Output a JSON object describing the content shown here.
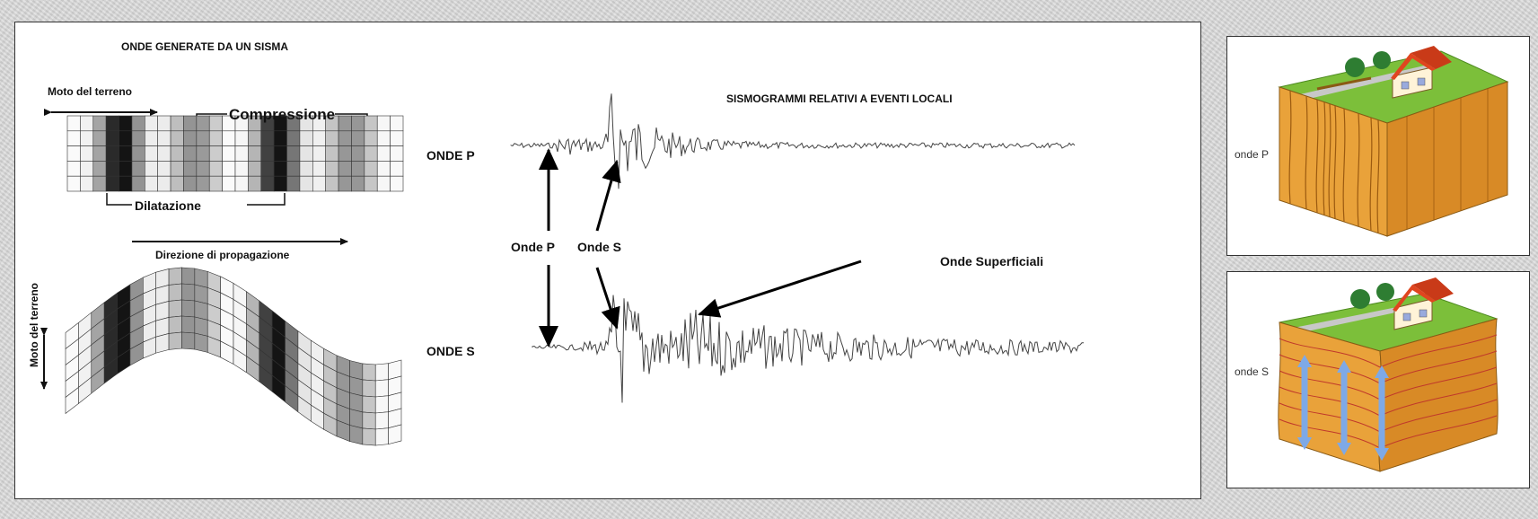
{
  "main": {
    "title": "ONDE GENERATE DA UN SISMA",
    "ground_motion_top": "Moto del terreno",
    "compression": "Compressione",
    "dilation": "Dilatazione",
    "p_waves": "ONDE P",
    "propagation": "Direzione di propagazione",
    "ground_motion_side": "Moto del terreno",
    "s_waves": "ONDE S",
    "seismograms_title": "SISMOGRAMMI RELATIVI A EVENTI LOCALI",
    "arrival_p": "Onde P",
    "arrival_s": "Onde S",
    "surface_waves": "Onde Superficiali"
  },
  "side": {
    "p_label": "onde P",
    "s_label": "onde S"
  },
  "colors": {
    "background": "#d8d8d8",
    "grid_dark": "#111111",
    "ground_top": "#7cbf3a",
    "ground_soil": "#e9a23a",
    "house_roof": "#e0451f",
    "arrow_blue": "#7ea9e6"
  }
}
